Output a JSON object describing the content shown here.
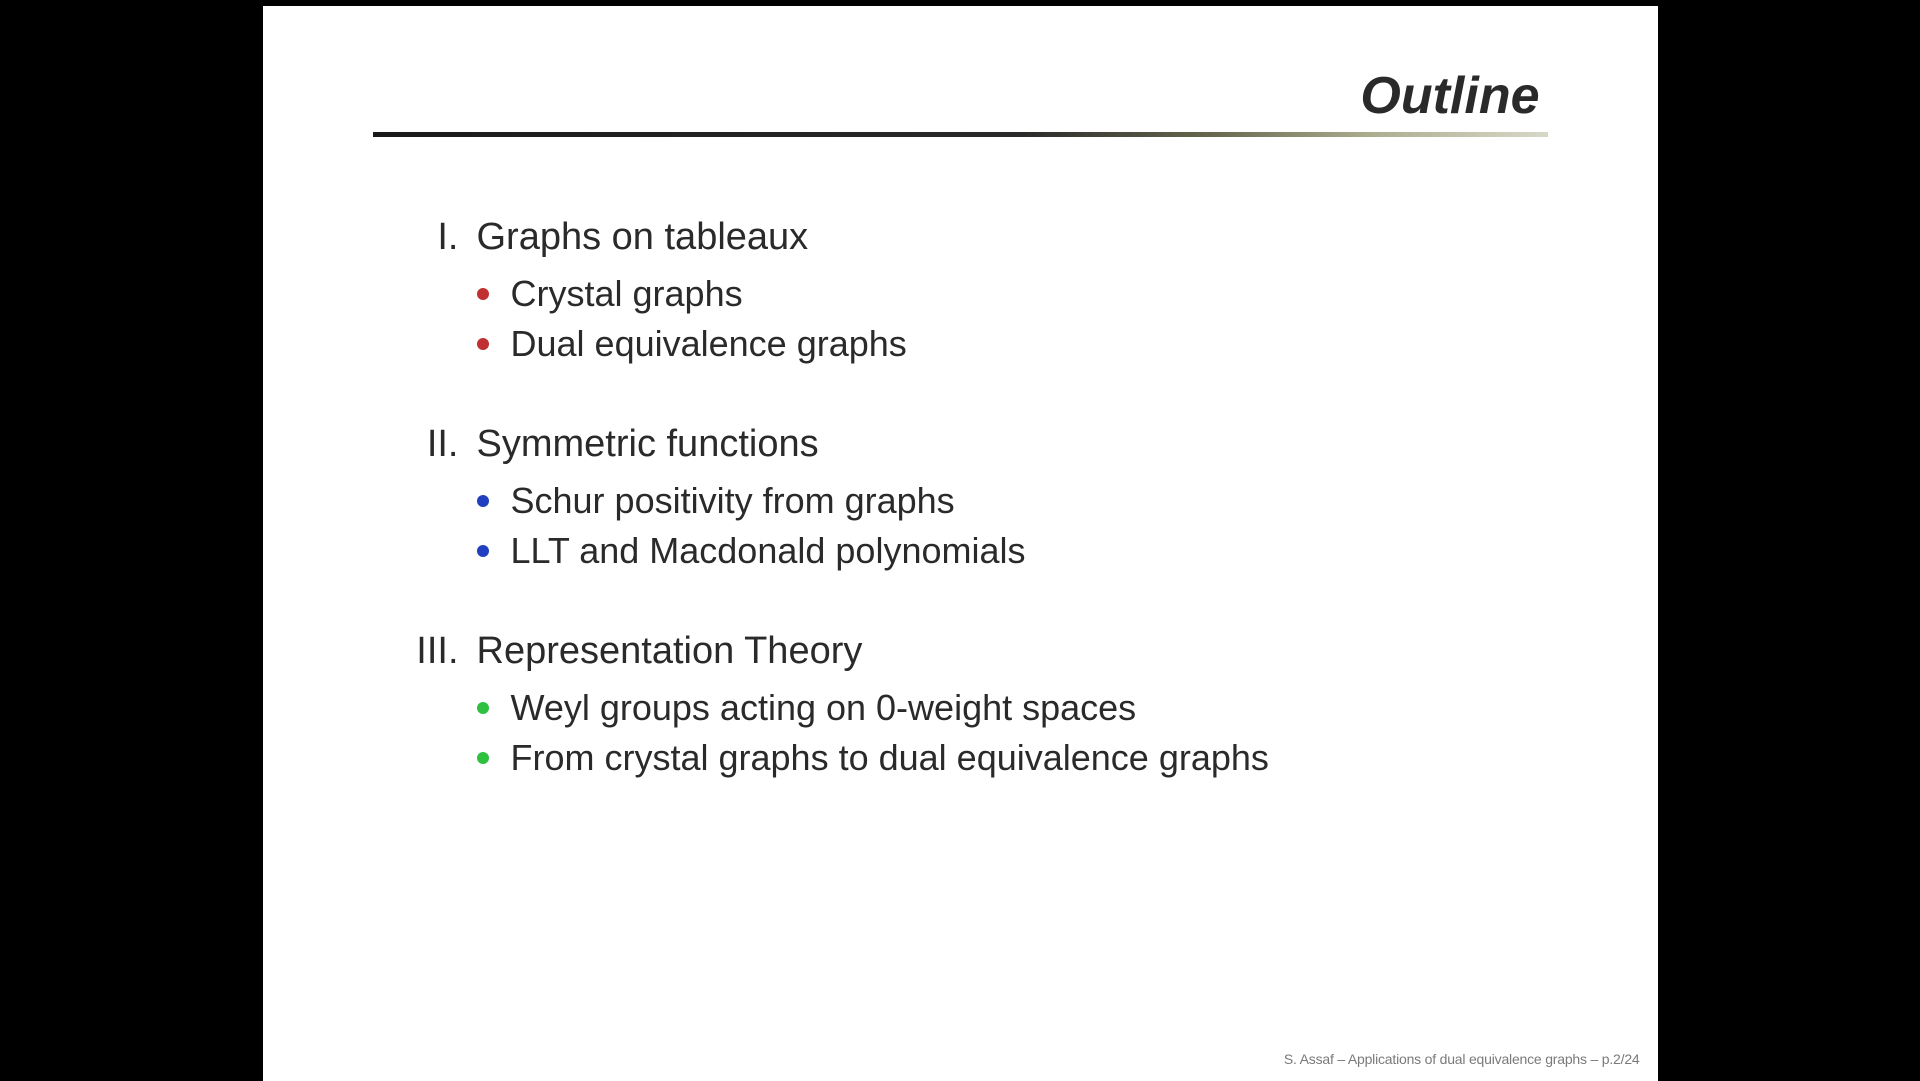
{
  "slide": {
    "title": "Outline",
    "title_fontsize": 52,
    "title_fontstyle": "italic bold",
    "background_color": "#ffffff",
    "page_background": "#000000",
    "rule_gradient": [
      "#1a1a1a",
      "#2a2a2a",
      "#6a6a50",
      "#adad90",
      "#d8d8c8"
    ],
    "body_fontsize": 38,
    "bullet_fontsize": 36,
    "bullet_colors": {
      "section1": "#c03030",
      "section2": "#2040c0",
      "section3": "#30c040"
    },
    "sections": [
      {
        "numeral": "I.",
        "label": "Graphs on tableaux",
        "bullet_color": "#c03030",
        "items": [
          "Crystal graphs",
          "Dual equivalence graphs"
        ]
      },
      {
        "numeral": "II.",
        "label": "Symmetric functions",
        "bullet_color": "#2040c0",
        "items": [
          "Schur positivity from graphs",
          "LLT and Macdonald polynomials"
        ]
      },
      {
        "numeral": "III.",
        "label": "Representation Theory",
        "bullet_color": "#30c040",
        "items": [
          "Weyl groups acting on 0-weight spaces",
          "From crystal graphs to dual equivalence graphs"
        ]
      }
    ],
    "footer": "S. Assaf – Applications of dual equivalence graphs – p.2/24"
  }
}
